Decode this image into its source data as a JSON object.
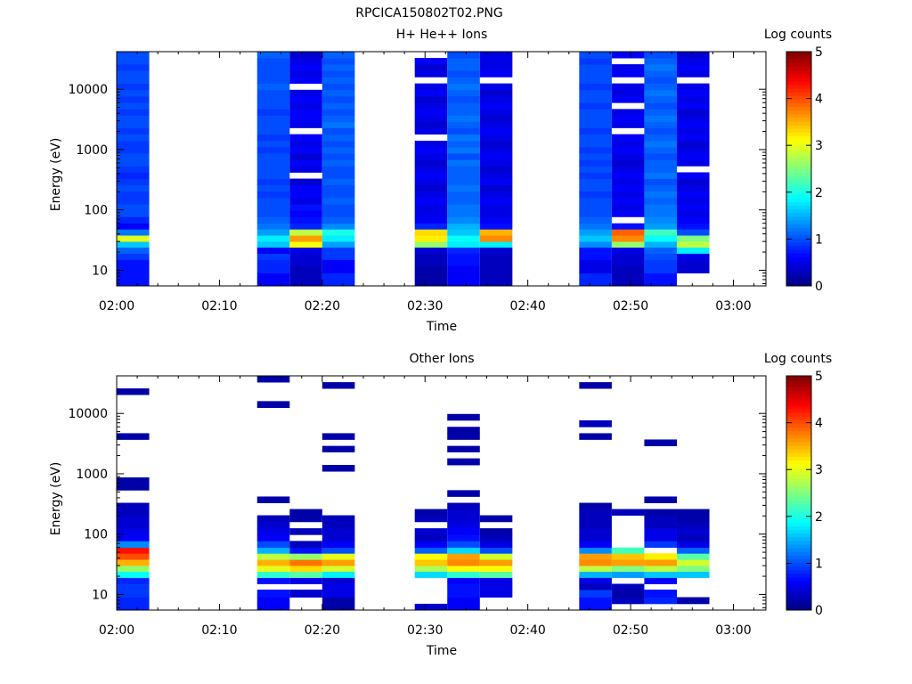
{
  "figure": {
    "title": "RPCICA150802T02.PNG"
  },
  "colors": {
    "colormap": "jet",
    "axis": "#000000",
    "background": "#ffffff"
  },
  "chart_data": [
    {
      "type": "heatmap",
      "title": "H+ He++ Ions",
      "xlabel": "Time",
      "ylabel": "Energy (eV)",
      "y_scale": "log",
      "ylim": [
        5.5,
        42000
      ],
      "x_ticks": [
        "02:00",
        "02:10",
        "02:20",
        "02:30",
        "02:40",
        "02:50",
        "03:00"
      ],
      "y_ticks": [
        "10",
        "100",
        "1000",
        "10000"
      ],
      "colorbar": {
        "label": "Log counts",
        "range": [
          0,
          5
        ],
        "ticks": [
          "0",
          "1",
          "2",
          "3",
          "4",
          "5"
        ]
      },
      "grid": false,
      "energy_bin_edges": [
        5.5,
        7,
        9,
        12,
        15,
        19,
        24,
        30,
        38,
        48,
        60,
        77,
        98,
        125,
        160,
        205,
        260,
        330,
        420,
        535,
        680,
        870,
        1100,
        1400,
        1800,
        2300,
        2900,
        3700,
        4700,
        6000,
        7700,
        9800,
        12500,
        16000,
        20500,
        26000,
        33000,
        42000
      ],
      "sweeps": [
        {
          "start": "02:00:00",
          "end": "02:03:10",
          "log_counts": [
            0.7,
            0.7,
            0.7,
            0.7,
            0.9,
            1.1,
            1.6,
            3.0,
            1.2,
            0.6,
            0.8,
            1.0,
            1.0,
            0.9,
            0.9,
            1.0,
            0.9,
            0.8,
            0.9,
            1.0,
            1.0,
            0.9,
            0.9,
            1.0,
            0.9,
            1.0,
            1.0,
            0.9,
            1.0,
            0.9,
            1.0,
            0.9,
            1.0,
            1.0,
            0.9,
            1.0,
            1.0
          ]
        },
        {
          "start": "02:13:40",
          "end": "02:16:50",
          "log_counts": [
            0.6,
            0.6,
            0.8,
            0.8,
            0.9,
            0.6,
            1.6,
            1.8,
            1.4,
            1.2,
            1.1,
            1.0,
            1.0,
            1.0,
            0.9,
            1.0,
            0.9,
            1.0,
            1.0,
            1.0,
            1.0,
            0.9,
            1.0,
            0.9,
            1.0,
            1.0,
            1.0,
            0.9,
            1.0,
            1.0,
            1.0,
            1.1,
            1.0,
            1.0,
            1.0,
            1.0,
            1.1
          ]
        },
        {
          "start": "02:16:50",
          "end": "02:20:00",
          "log_counts": [
            0.3,
            0.3,
            0.3,
            0.4,
            0.4,
            0.5,
            3.1,
            3.6,
            2.8,
            0.8,
            0.7,
            0.6,
            0.7,
            0.5,
            0.6,
            0.6,
            0.4,
            null,
            0.5,
            0.6,
            0.4,
            0.6,
            0.5,
            0.6,
            null,
            0.5,
            0.6,
            0.6,
            0.5,
            0.6,
            0.5,
            null,
            0.6,
            0.5,
            0.6,
            0.5,
            0.4
          ]
        },
        {
          "start": "02:20:00",
          "end": "02:23:10",
          "log_counts": [
            0.8,
            0.8,
            0.6,
            0.6,
            0.9,
            0.9,
            1.4,
            1.8,
            2.0,
            1.3,
            1.1,
            1.0,
            1.0,
            1.1,
            1.0,
            1.0,
            1.1,
            1.0,
            1.0,
            1.1,
            1.0,
            1.1,
            1.0,
            1.1,
            1.0,
            1.2,
            1.1,
            1.0,
            1.1,
            1.0,
            1.1,
            1.0,
            1.1,
            1.0,
            1.1,
            1.0,
            1.1
          ]
        },
        {
          "start": "02:29:00",
          "end": "02:32:10",
          "log_counts": [
            0.2,
            0.2,
            0.2,
            0.3,
            0.3,
            0.4,
            2.6,
            3.2,
            3.3,
            0.8,
            0.6,
            0.5,
            0.5,
            0.6,
            0.5,
            0.4,
            0.5,
            0.6,
            0.5,
            0.4,
            0.5,
            0.6,
            0.5,
            null,
            0.5,
            0.4,
            0.5,
            0.6,
            0.5,
            0.4,
            0.6,
            0.5,
            null,
            0.5,
            0.4,
            0.6,
            null
          ]
        },
        {
          "start": "02:32:10",
          "end": "02:35:20",
          "log_counts": [
            0.6,
            0.6,
            0.6,
            0.7,
            0.7,
            0.8,
            1.8,
            1.9,
            1.6,
            1.5,
            1.3,
            1.2,
            1.2,
            1.1,
            1.1,
            1.2,
            1.1,
            1.1,
            1.1,
            1.2,
            1.0,
            1.2,
            1.1,
            1.2,
            1.0,
            1.1,
            1.2,
            1.1,
            1.1,
            1.0,
            1.1,
            1.2,
            1.1,
            1.0,
            1.1,
            1.1,
            1.0
          ]
        },
        {
          "start": "02:35:20",
          "end": "02:38:30",
          "log_counts": [
            0.3,
            0.3,
            0.3,
            0.3,
            0.3,
            0.4,
            1.8,
            3.7,
            3.5,
            0.7,
            0.6,
            0.5,
            0.5,
            0.6,
            0.5,
            0.4,
            0.6,
            0.5,
            0.4,
            0.5,
            0.6,
            0.5,
            0.4,
            0.5,
            0.6,
            0.5,
            0.4,
            0.5,
            0.6,
            0.5,
            0.4,
            0.5,
            null,
            0.6,
            0.5,
            0.5,
            0.5
          ]
        },
        {
          "start": "02:45:00",
          "end": "02:48:10",
          "log_counts": [
            0.8,
            0.8,
            0.5,
            0.5,
            0.7,
            0.7,
            1.3,
            1.6,
            1.4,
            1.2,
            1.1,
            1.0,
            1.0,
            1.0,
            0.9,
            1.0,
            1.0,
            0.9,
            1.0,
            0.9,
            1.0,
            0.9,
            1.0,
            1.0,
            0.9,
            1.0,
            1.0,
            1.0,
            0.9,
            1.0,
            1.0,
            0.9,
            1.0,
            1.0,
            1.0,
            0.9,
            1.0
          ]
        },
        {
          "start": "02:48:10",
          "end": "02:51:20",
          "log_counts": [
            0.3,
            0.3,
            0.3,
            0.4,
            0.4,
            0.5,
            2.6,
            3.7,
            3.9,
            0.7,
            null,
            0.6,
            0.5,
            0.6,
            0.5,
            0.6,
            0.5,
            0.6,
            0.5,
            0.4,
            0.5,
            0.6,
            0.5,
            0.6,
            null,
            0.5,
            0.6,
            0.5,
            null,
            0.6,
            0.5,
            0.5,
            null,
            0.6,
            0.5,
            null,
            0.6
          ]
        },
        {
          "start": "02:51:20",
          "end": "02:54:30",
          "log_counts": [
            0.7,
            0.7,
            0.9,
            0.9,
            1.0,
            1.1,
            1.5,
            1.9,
            2.2,
            1.4,
            1.3,
            1.2,
            1.2,
            1.1,
            1.2,
            1.1,
            1.0,
            1.2,
            1.1,
            1.1,
            1.0,
            1.1,
            1.2,
            1.1,
            1.0,
            1.1,
            1.2,
            1.1,
            1.0,
            1.1,
            1.2,
            1.1,
            1.0,
            1.1,
            1.2,
            1.1,
            1.0
          ]
        },
        {
          "start": "02:54:30",
          "end": "02:57:40",
          "log_counts": [
            null,
            null,
            0.4,
            0.4,
            0.5,
            1.8,
            2.8,
            2.5,
            1.0,
            0.7,
            0.6,
            0.5,
            0.6,
            0.5,
            0.6,
            0.5,
            0.4,
            0.6,
            null,
            0.5,
            0.6,
            0.5,
            0.4,
            0.6,
            0.5,
            0.6,
            0.5,
            0.4,
            0.6,
            0.5,
            0.6,
            0.5,
            null,
            0.5,
            0.6,
            0.5,
            0.4
          ]
        }
      ]
    },
    {
      "type": "heatmap",
      "title": "Other Ions",
      "xlabel": "Time",
      "ylabel": "Energy (eV)",
      "y_scale": "log",
      "ylim": [
        5.5,
        42000
      ],
      "x_ticks": [
        "02:00",
        "02:10",
        "02:20",
        "02:30",
        "02:40",
        "02:50",
        "03:00"
      ],
      "y_ticks": [
        "10",
        "100",
        "1000",
        "10000"
      ],
      "colorbar": {
        "label": "Log counts",
        "range": [
          0,
          5
        ],
        "ticks": [
          "0",
          "1",
          "2",
          "3",
          "4",
          "5"
        ]
      },
      "grid": false,
      "energy_bin_edges": [
        5.5,
        7,
        9,
        12,
        15,
        19,
        24,
        30,
        38,
        48,
        60,
        77,
        98,
        125,
        160,
        205,
        260,
        330,
        420,
        535,
        680,
        870,
        1100,
        1400,
        1800,
        2300,
        2900,
        3700,
        4700,
        6000,
        7700,
        9800,
        12500,
        16000,
        20500,
        26000,
        33000,
        42000
      ],
      "sweeps": [
        {
          "start": "02:00:00",
          "end": "02:03:10",
          "log_counts": [
            0.8,
            0.8,
            0.9,
            0.9,
            0.8,
            1.9,
            2.6,
            3.5,
            4.0,
            4.3,
            1.3,
            0.6,
            0.5,
            0.4,
            0.4,
            0.3,
            0.3,
            null,
            null,
            0.2,
            0.2,
            null,
            null,
            null,
            null,
            null,
            null,
            0.2,
            null,
            null,
            null,
            null,
            null,
            null,
            0.2,
            null,
            null
          ]
        },
        {
          "start": "02:13:40",
          "end": "02:16:50",
          "log_counts": [
            0.6,
            0.6,
            0.7,
            null,
            0.7,
            2.1,
            3.0,
            3.5,
            2.8,
            1.5,
            1.0,
            0.6,
            0.5,
            0.4,
            0.3,
            null,
            null,
            0.2,
            null,
            null,
            null,
            null,
            null,
            null,
            null,
            null,
            null,
            null,
            null,
            null,
            null,
            null,
            0.2,
            null,
            null,
            null,
            0.2
          ]
        },
        {
          "start": "02:16:50",
          "end": "02:20:00",
          "log_counts": [
            null,
            null,
            0.4,
            null,
            0.5,
            2.3,
            3.3,
            3.8,
            2.6,
            0.7,
            0.3,
            null,
            0.3,
            null,
            0.2,
            0.2,
            null,
            null,
            null,
            null,
            null,
            null,
            null,
            null,
            null,
            null,
            null,
            null,
            null,
            null,
            null,
            null,
            null,
            null,
            null,
            null,
            null
          ]
        },
        {
          "start": "02:20:00",
          "end": "02:23:10",
          "log_counts": [
            0.2,
            0.2,
            0.5,
            0.5,
            0.4,
            1.8,
            2.9,
            3.6,
            3.0,
            1.0,
            0.6,
            0.4,
            0.4,
            0.3,
            0.3,
            null,
            null,
            null,
            null,
            null,
            null,
            null,
            0.2,
            null,
            null,
            0.2,
            null,
            0.2,
            null,
            null,
            null,
            null,
            null,
            null,
            null,
            0.2,
            null
          ]
        },
        {
          "start": "02:29:00",
          "end": "02:32:10",
          "log_counts": [
            0.4,
            null,
            null,
            null,
            null,
            1.7,
            2.7,
            3.4,
            3.1,
            1.1,
            0.6,
            0.3,
            0.4,
            null,
            0.3,
            0.2,
            null,
            null,
            null,
            null,
            null,
            null,
            null,
            null,
            null,
            null,
            null,
            null,
            null,
            null,
            null,
            null,
            null,
            null,
            null,
            null,
            null
          ]
        },
        {
          "start": "02:32:10",
          "end": "02:35:20",
          "log_counts": [
            0.6,
            0.6,
            0.7,
            0.7,
            0.6,
            2.1,
            3.1,
            3.7,
            3.6,
            1.7,
            1.0,
            0.7,
            0.6,
            0.5,
            0.4,
            0.4,
            0.3,
            null,
            0.2,
            null,
            null,
            null,
            null,
            0.2,
            null,
            0.2,
            null,
            0.2,
            0.2,
            null,
            0.2,
            null,
            null,
            null,
            null,
            null,
            null
          ]
        },
        {
          "start": "02:35:20",
          "end": "02:38:30",
          "log_counts": [
            null,
            null,
            0.5,
            0.5,
            0.5,
            2.3,
            3.1,
            3.6,
            2.9,
            1.0,
            0.5,
            0.3,
            0.2,
            null,
            0.2,
            null,
            null,
            null,
            null,
            null,
            null,
            null,
            null,
            null,
            null,
            null,
            null,
            null,
            null,
            null,
            null,
            null,
            null,
            null,
            null,
            null,
            null
          ]
        },
        {
          "start": "02:45:00",
          "end": "02:48:10",
          "log_counts": [
            0.7,
            0.7,
            0.9,
            0.3,
            0.5,
            1.5,
            2.8,
            3.7,
            3.6,
            1.3,
            0.6,
            0.4,
            0.4,
            0.3,
            0.3,
            0.3,
            0.2,
            null,
            null,
            null,
            null,
            null,
            null,
            null,
            null,
            null,
            null,
            0.2,
            null,
            0.3,
            null,
            null,
            null,
            null,
            null,
            0.2,
            null
          ]
        },
        {
          "start": "02:48:10",
          "end": "02:51:20",
          "log_counts": [
            null,
            0.3,
            0.2,
            0.3,
            null,
            1.4,
            2.5,
            3.6,
            3.4,
            2.2,
            null,
            null,
            null,
            null,
            null,
            0.3,
            null,
            null,
            null,
            null,
            null,
            null,
            null,
            null,
            null,
            null,
            null,
            null,
            null,
            null,
            null,
            null,
            null,
            null,
            null,
            null,
            null
          ]
        },
        {
          "start": "02:51:20",
          "end": "02:54:30",
          "log_counts": [
            null,
            0.8,
            0.7,
            null,
            0.6,
            1.6,
            2.8,
            3.6,
            3.2,
            null,
            0.9,
            0.5,
            0.5,
            0.3,
            0.3,
            0.2,
            null,
            0.2,
            null,
            null,
            null,
            null,
            null,
            null,
            null,
            null,
            0.2,
            null,
            null,
            null,
            null,
            null,
            null,
            null,
            null,
            null,
            null
          ]
        },
        {
          "start": "02:54:30",
          "end": "02:57:40",
          "log_counts": [
            null,
            0.2,
            null,
            null,
            null,
            1.6,
            2.5,
            2.9,
            2.3,
            1.1,
            0.5,
            0.3,
            0.4,
            0.3,
            0.2,
            0.2,
            null,
            null,
            null,
            null,
            null,
            null,
            null,
            null,
            null,
            null,
            null,
            null,
            null,
            null,
            null,
            null,
            null,
            null,
            null,
            null,
            null
          ]
        }
      ]
    }
  ]
}
